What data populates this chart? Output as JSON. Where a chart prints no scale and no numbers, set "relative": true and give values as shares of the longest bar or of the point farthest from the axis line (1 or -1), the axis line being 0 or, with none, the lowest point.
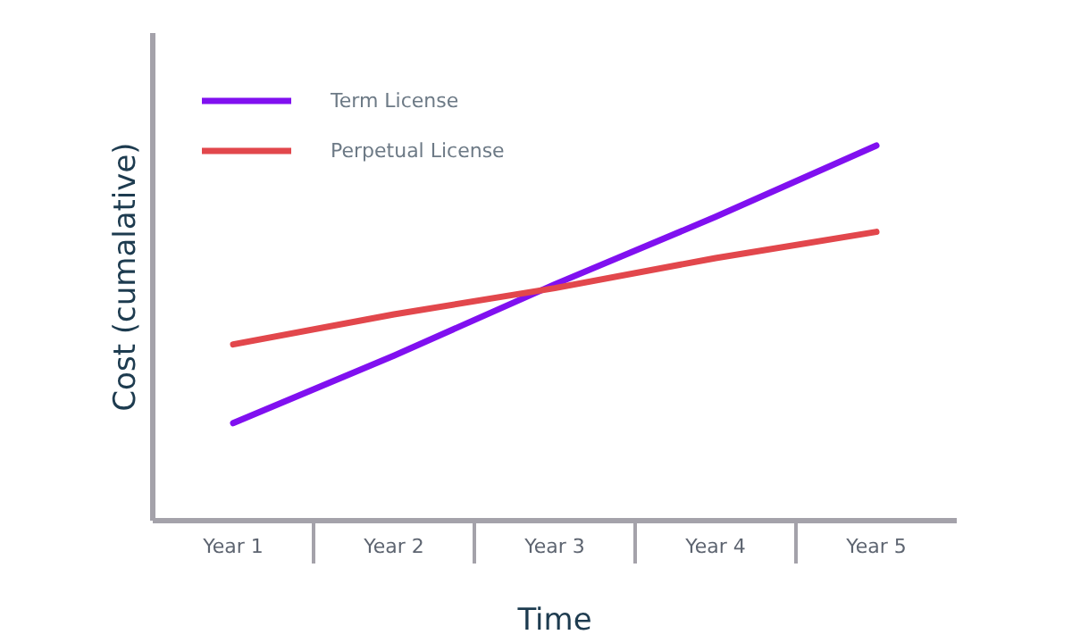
{
  "chart_data": {
    "type": "line",
    "relative": true,
    "xlabel": "Time",
    "ylabel": "Cost (cumalative)",
    "categories": [
      "Year 1",
      "Year 2",
      "Year 3",
      "Year 4",
      "Year 5"
    ],
    "series": [
      {
        "name": "Term License",
        "color": "#8010f0",
        "values": [
          0.26,
          0.44,
          0.63,
          0.81,
          1
        ]
      },
      {
        "name": "Perpetual License",
        "color": "#e2474c",
        "values": [
          0.47,
          0.55,
          0.62,
          0.7,
          0.77
        ]
      }
    ],
    "legend": "top left",
    "grid": false,
    "line_style": "solid"
  }
}
